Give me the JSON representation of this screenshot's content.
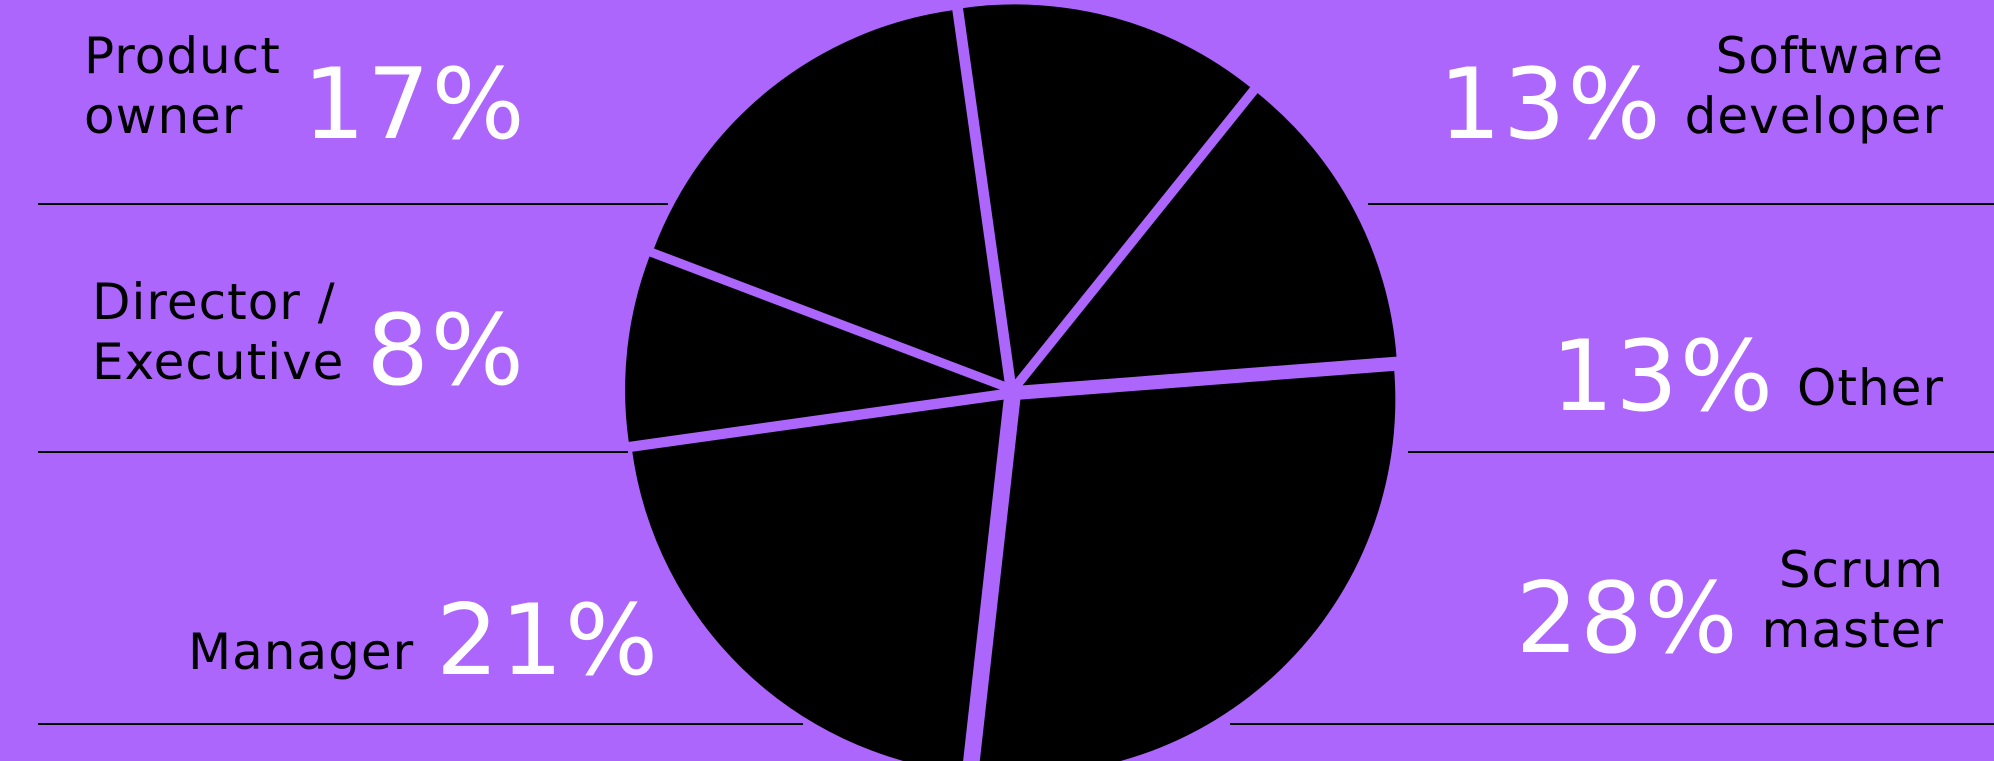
{
  "chart_data": {
    "type": "pie",
    "title": "",
    "slices": [
      {
        "label": "Software\ndeveloper",
        "value": 13,
        "display": "13%"
      },
      {
        "label": "Other",
        "value": 13,
        "display": "13%"
      },
      {
        "label": "Scrum\nmaster",
        "value": 28,
        "display": "28%"
      },
      {
        "label": "Manager",
        "value": 21,
        "display": "21%"
      },
      {
        "label": "Director /\nExecutive",
        "value": 8,
        "display": "8%"
      },
      {
        "label": "Product\nowner",
        "value": 17,
        "display": "17%"
      }
    ]
  },
  "colors": {
    "background": "#ad66fc",
    "slice_fill": "#000000",
    "label_text": "#000000",
    "percent_text": "#ffffff"
  }
}
